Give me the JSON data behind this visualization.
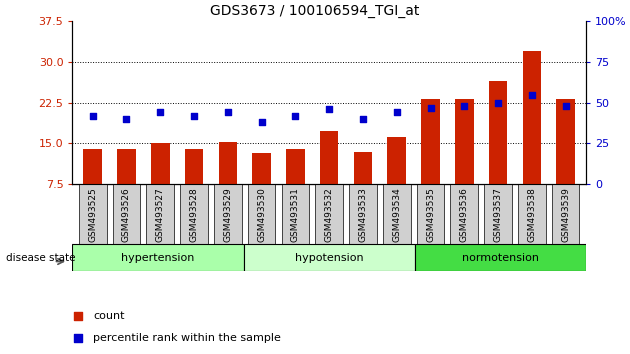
{
  "title": "GDS3673 / 100106594_TGI_at",
  "samples": [
    "GSM493525",
    "GSM493526",
    "GSM493527",
    "GSM493528",
    "GSM493529",
    "GSM493530",
    "GSM493531",
    "GSM493532",
    "GSM493533",
    "GSM493534",
    "GSM493535",
    "GSM493536",
    "GSM493537",
    "GSM493538",
    "GSM493539"
  ],
  "counts": [
    14.0,
    14.0,
    15.0,
    14.0,
    15.2,
    13.2,
    14.0,
    17.2,
    13.4,
    16.2,
    23.2,
    23.2,
    26.5,
    32.0,
    23.2
  ],
  "percentiles": [
    42,
    40,
    44,
    42,
    44,
    38,
    42,
    46,
    40,
    44,
    47,
    48,
    50,
    55,
    48
  ],
  "groups": [
    {
      "label": "hypertension",
      "start": 0,
      "end": 5,
      "color": "#aaffaa"
    },
    {
      "label": "hypotension",
      "start": 5,
      "end": 10,
      "color": "#ccffcc"
    },
    {
      "label": "normotension",
      "start": 10,
      "end": 15,
      "color": "#44dd44"
    }
  ],
  "bar_color": "#cc2200",
  "dot_color": "#0000cc",
  "left_ylim": [
    7.5,
    37.5
  ],
  "left_yticks": [
    7.5,
    15.0,
    22.5,
    30.0,
    37.5
  ],
  "right_ylim": [
    0,
    100
  ],
  "right_yticks": [
    0,
    25,
    50,
    75,
    100
  ],
  "right_yticklabels": [
    "0",
    "25",
    "50",
    "75",
    "100%"
  ],
  "bar_width": 0.55,
  "legend_count_label": "count",
  "legend_pct_label": "percentile rank within the sample",
  "disease_state_label": "disease state",
  "sample_box_color": "#d0d0d0",
  "fig_width": 6.3,
  "fig_height": 3.54,
  "dpi": 100
}
